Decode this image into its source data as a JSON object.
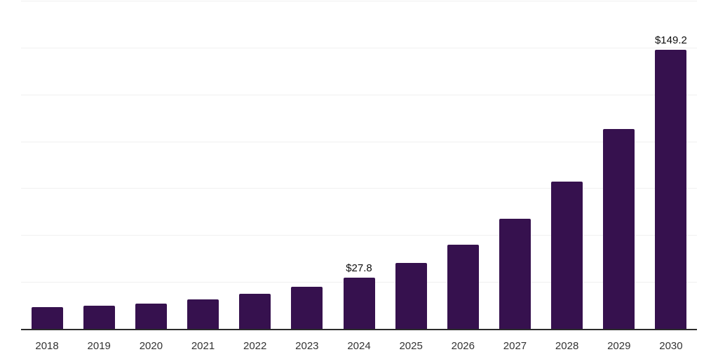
{
  "chart_data": {
    "type": "bar",
    "categories": [
      "2018",
      "2019",
      "2020",
      "2021",
      "2022",
      "2023",
      "2024",
      "2025",
      "2026",
      "2027",
      "2028",
      "2029",
      "2030"
    ],
    "values": [
      12.0,
      12.8,
      13.7,
      16.0,
      19.0,
      22.8,
      27.8,
      35.4,
      45.1,
      59.0,
      78.8,
      107.0,
      149.2
    ],
    "annotations": {
      "2024": "$27.8",
      "2030": "$149.2"
    },
    "title": "",
    "xlabel": "",
    "ylabel": "",
    "ylim": [
      0,
      175
    ],
    "grid_step": 25,
    "grid": "horizontal-only",
    "legend": "none",
    "y_tick_labels_visible": false,
    "colors": {
      "bar": "#36114E",
      "axis_line": "#2b2b2b",
      "gridline": "#f0f0f0",
      "tick_label": "#333333",
      "data_label": "#0d0d0d",
      "background": "#ffffff"
    }
  }
}
